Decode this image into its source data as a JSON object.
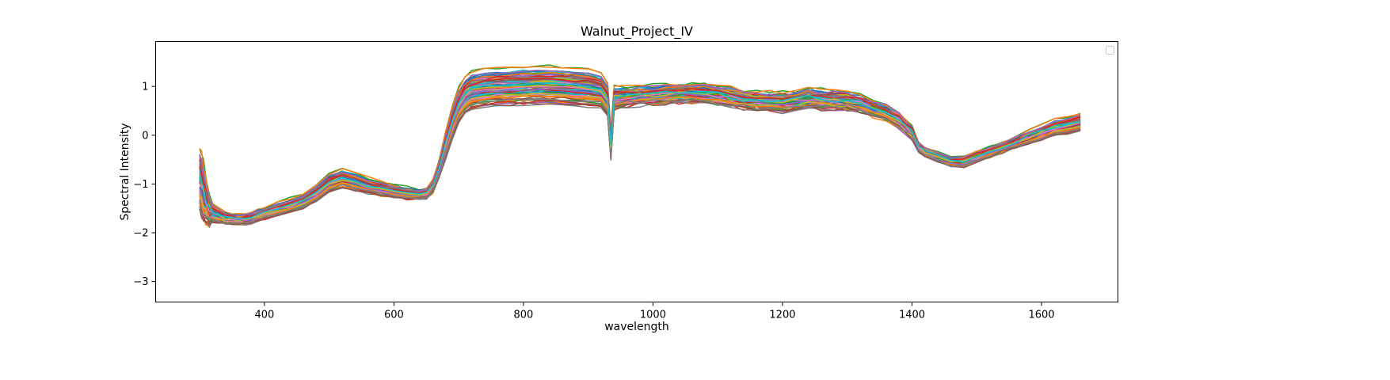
{
  "chart_data": {
    "type": "line",
    "title": "Walnut_Project_IV",
    "xlabel": "wavelength",
    "ylabel": "Spectral Intensity",
    "xlim": [
      232,
      1718
    ],
    "ylim": [
      -3.42,
      1.92
    ],
    "xticks": [
      400,
      600,
      800,
      1000,
      1200,
      1400,
      1600
    ],
    "yticks": [
      -3,
      -2,
      -1,
      0,
      1
    ],
    "grid": false,
    "legend": {
      "placement": "upper-right",
      "entries": []
    },
    "series_count": 100,
    "x": [
      300,
      303,
      306,
      310,
      315,
      320,
      330,
      340,
      350,
      360,
      370,
      380,
      390,
      400,
      420,
      440,
      460,
      480,
      500,
      520,
      540,
      560,
      580,
      600,
      620,
      640,
      650,
      660,
      670,
      680,
      690,
      700,
      710,
      720,
      740,
      760,
      780,
      800,
      820,
      840,
      860,
      880,
      900,
      920,
      930,
      935,
      940,
      960,
      980,
      1000,
      1020,
      1040,
      1060,
      1080,
      1100,
      1120,
      1140,
      1160,
      1180,
      1200,
      1220,
      1240,
      1260,
      1280,
      1300,
      1320,
      1340,
      1360,
      1380,
      1400,
      1410,
      1420,
      1440,
      1460,
      1480,
      1500,
      1520,
      1540,
      1560,
      1580,
      1600,
      1620,
      1640,
      1660
    ],
    "mean_spectrum": [
      -0.9,
      -1.05,
      -1.25,
      -1.4,
      -1.55,
      -1.6,
      -1.65,
      -1.7,
      -1.72,
      -1.73,
      -1.72,
      -1.7,
      -1.65,
      -1.6,
      -1.52,
      -1.45,
      -1.35,
      -1.2,
      -1.0,
      -0.9,
      -0.95,
      -1.05,
      -1.1,
      -1.15,
      -1.2,
      -1.22,
      -1.2,
      -1.05,
      -0.7,
      -0.2,
      0.25,
      0.6,
      0.8,
      0.9,
      0.95,
      0.97,
      0.98,
      0.99,
      1.0,
      1.0,
      0.99,
      0.97,
      0.95,
      0.9,
      0.7,
      -0.25,
      0.75,
      0.78,
      0.8,
      0.82,
      0.84,
      0.85,
      0.86,
      0.85,
      0.82,
      0.78,
      0.72,
      0.7,
      0.68,
      0.66,
      0.7,
      0.76,
      0.72,
      0.72,
      0.7,
      0.65,
      0.55,
      0.45,
      0.3,
      0.05,
      -0.25,
      -0.35,
      -0.45,
      -0.55,
      -0.55,
      -0.45,
      -0.35,
      -0.25,
      -0.15,
      -0.05,
      0.05,
      0.15,
      0.2,
      0.25
    ],
    "spread": [
      1.0,
      1.0,
      0.9,
      0.7,
      0.45,
      0.3,
      0.22,
      0.18,
      0.16,
      0.16,
      0.16,
      0.17,
      0.18,
      0.18,
      0.2,
      0.22,
      0.24,
      0.26,
      0.28,
      0.3,
      0.28,
      0.25,
      0.22,
      0.2,
      0.18,
      0.16,
      0.16,
      0.2,
      0.3,
      0.42,
      0.5,
      0.55,
      0.57,
      0.6,
      0.6,
      0.6,
      0.6,
      0.6,
      0.6,
      0.6,
      0.6,
      0.6,
      0.6,
      0.55,
      0.5,
      0.45,
      0.35,
      0.32,
      0.3,
      0.3,
      0.3,
      0.3,
      0.3,
      0.3,
      0.3,
      0.3,
      0.3,
      0.3,
      0.3,
      0.3,
      0.3,
      0.32,
      0.3,
      0.3,
      0.3,
      0.28,
      0.26,
      0.26,
      0.25,
      0.2,
      0.15,
      0.15,
      0.15,
      0.15,
      0.15,
      0.15,
      0.15,
      0.15,
      0.17,
      0.2,
      0.22,
      0.25,
      0.28,
      0.3
    ],
    "palette": [
      "#1f77b4",
      "#ff7f0e",
      "#2ca02c",
      "#d62728",
      "#9467bd",
      "#8c564b",
      "#e377c2",
      "#7f7f7f",
      "#bcbd22",
      "#17becf"
    ]
  }
}
